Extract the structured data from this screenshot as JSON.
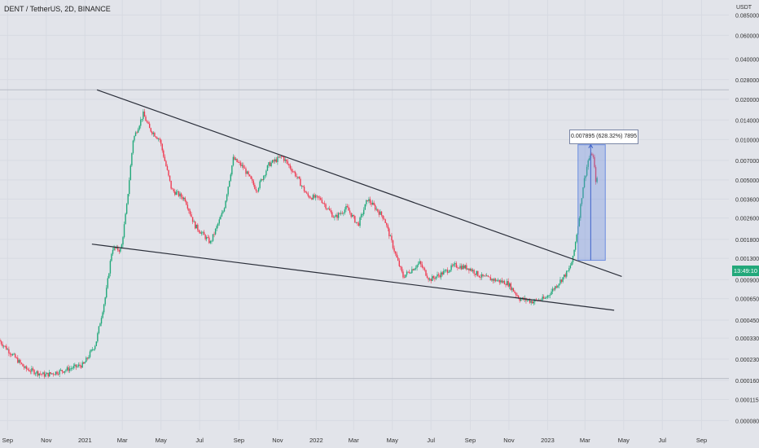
{
  "header": {
    "title": "DENT / TetherUS, 2D, BINANCE"
  },
  "price_axis": {
    "unit": "USDT",
    "ticks": [
      "0.085000",
      "0.060000",
      "0.040000",
      "0.028000",
      "0.020000",
      "0.014000",
      "0.010000",
      "0.007000",
      "0.005000",
      "0.003600",
      "0.002600",
      "0.001800",
      "0.001300",
      "0.000900",
      "0.000650",
      "0.000450",
      "0.000330",
      "0.000230",
      "0.000160",
      "0.000115",
      "0.000080"
    ]
  },
  "time_axis": {
    "ticks": [
      "Sep",
      "Nov",
      "2021",
      "Mar",
      "May",
      "Jul",
      "Sep",
      "Nov",
      "2022",
      "Mar",
      "May",
      "Jul",
      "Sep",
      "Nov",
      "2023",
      "Mar",
      "May",
      "Jul",
      "Sep"
    ]
  },
  "current_price_tag": {
    "text": "13:49:10",
    "color": "#22a87a"
  },
  "measurement": {
    "label": "0.007895 (628.32%) 7895"
  },
  "colors": {
    "up": "#22a87a",
    "down": "#ef3b52",
    "trendline": "#2a2e39",
    "measure": "#6b8cdf",
    "background": "#e2e4ea"
  },
  "chart_data": {
    "type": "candlestick",
    "title": "DENT / TetherUS, 2D, BINANCE",
    "y_scale": "log",
    "ylabel": "USDT",
    "ylim": [
      6.8e-05,
      0.11
    ],
    "xlim": [
      "2020-08-20",
      "2023-10-14"
    ],
    "key_points": [
      {
        "x": "2020-08-20",
        "y": 0.00032
      },
      {
        "x": "2020-10-01",
        "y": 0.000195
      },
      {
        "x": "2020-11-01",
        "y": 0.000175
      },
      {
        "x": "2020-12-01",
        "y": 0.00019
      },
      {
        "x": "2021-01-01",
        "y": 0.00021
      },
      {
        "x": "2021-01-20",
        "y": 0.0003
      },
      {
        "x": "2021-02-05",
        "y": 0.0007
      },
      {
        "x": "2021-02-15",
        "y": 0.00155
      },
      {
        "x": "2021-03-01",
        "y": 0.0015
      },
      {
        "x": "2021-03-10",
        "y": 0.0032
      },
      {
        "x": "2021-03-20",
        "y": 0.01
      },
      {
        "x": "2021-04-05",
        "y": 0.0155
      },
      {
        "x": "2021-04-15",
        "y": 0.012
      },
      {
        "x": "2021-05-01",
        "y": 0.01
      },
      {
        "x": "2021-05-20",
        "y": 0.0042
      },
      {
        "x": "2021-06-10",
        "y": 0.0036
      },
      {
        "x": "2021-06-25",
        "y": 0.0023
      },
      {
        "x": "2021-07-20",
        "y": 0.0017
      },
      {
        "x": "2021-08-10",
        "y": 0.003
      },
      {
        "x": "2021-08-25",
        "y": 0.0072
      },
      {
        "x": "2021-09-10",
        "y": 0.0062
      },
      {
        "x": "2021-10-01",
        "y": 0.0042
      },
      {
        "x": "2021-10-20",
        "y": 0.0065
      },
      {
        "x": "2021-11-10",
        "y": 0.0075
      },
      {
        "x": "2021-12-01",
        "y": 0.0055
      },
      {
        "x": "2021-12-20",
        "y": 0.0038
      },
      {
        "x": "2022-01-10",
        "y": 0.0036
      },
      {
        "x": "2022-02-01",
        "y": 0.0026
      },
      {
        "x": "2022-02-20",
        "y": 0.0031
      },
      {
        "x": "2022-03-10",
        "y": 0.0023
      },
      {
        "x": "2022-03-25",
        "y": 0.0036
      },
      {
        "x": "2022-04-20",
        "y": 0.0026
      },
      {
        "x": "2022-05-10",
        "y": 0.0013
      },
      {
        "x": "2022-05-20",
        "y": 0.00095
      },
      {
        "x": "2022-06-15",
        "y": 0.0012
      },
      {
        "x": "2022-07-01",
        "y": 0.0009
      },
      {
        "x": "2022-07-20",
        "y": 0.001
      },
      {
        "x": "2022-08-10",
        "y": 0.00115
      },
      {
        "x": "2022-09-01",
        "y": 0.0011
      },
      {
        "x": "2022-09-20",
        "y": 0.00095
      },
      {
        "x": "2022-10-10",
        "y": 0.0009
      },
      {
        "x": "2022-11-01",
        "y": 0.00085
      },
      {
        "x": "2022-11-20",
        "y": 0.00065
      },
      {
        "x": "2022-12-10",
        "y": 0.00062
      },
      {
        "x": "2022-12-30",
        "y": 0.00065
      },
      {
        "x": "2023-01-20",
        "y": 0.00085
      },
      {
        "x": "2023-02-05",
        "y": 0.00105
      },
      {
        "x": "2023-02-12",
        "y": 0.0013
      },
      {
        "x": "2023-02-20",
        "y": 0.0023
      },
      {
        "x": "2023-02-28",
        "y": 0.0045
      },
      {
        "x": "2023-03-08",
        "y": 0.007
      },
      {
        "x": "2023-03-15",
        "y": 0.008
      },
      {
        "x": "2023-03-20",
        "y": 0.005
      }
    ],
    "trendlines": [
      {
        "name": "upper",
        "from": {
          "x": "2021-01-20",
          "y": 0.0235
        },
        "to": {
          "x": "2023-04-28",
          "y": 0.000952
        }
      },
      {
        "name": "lower",
        "from": {
          "x": "2021-01-12",
          "y": 0.00166
        },
        "to": {
          "x": "2023-04-16",
          "y": 0.000533
        }
      }
    ],
    "horizontal_lines": [
      0.0235,
      0.000165
    ],
    "measure": {
      "x_from": "2023-02-18",
      "x_to": "2023-04-02",
      "y_from": 0.001257,
      "y_to": 0.00915,
      "x_mid": "2023-03-10"
    }
  }
}
